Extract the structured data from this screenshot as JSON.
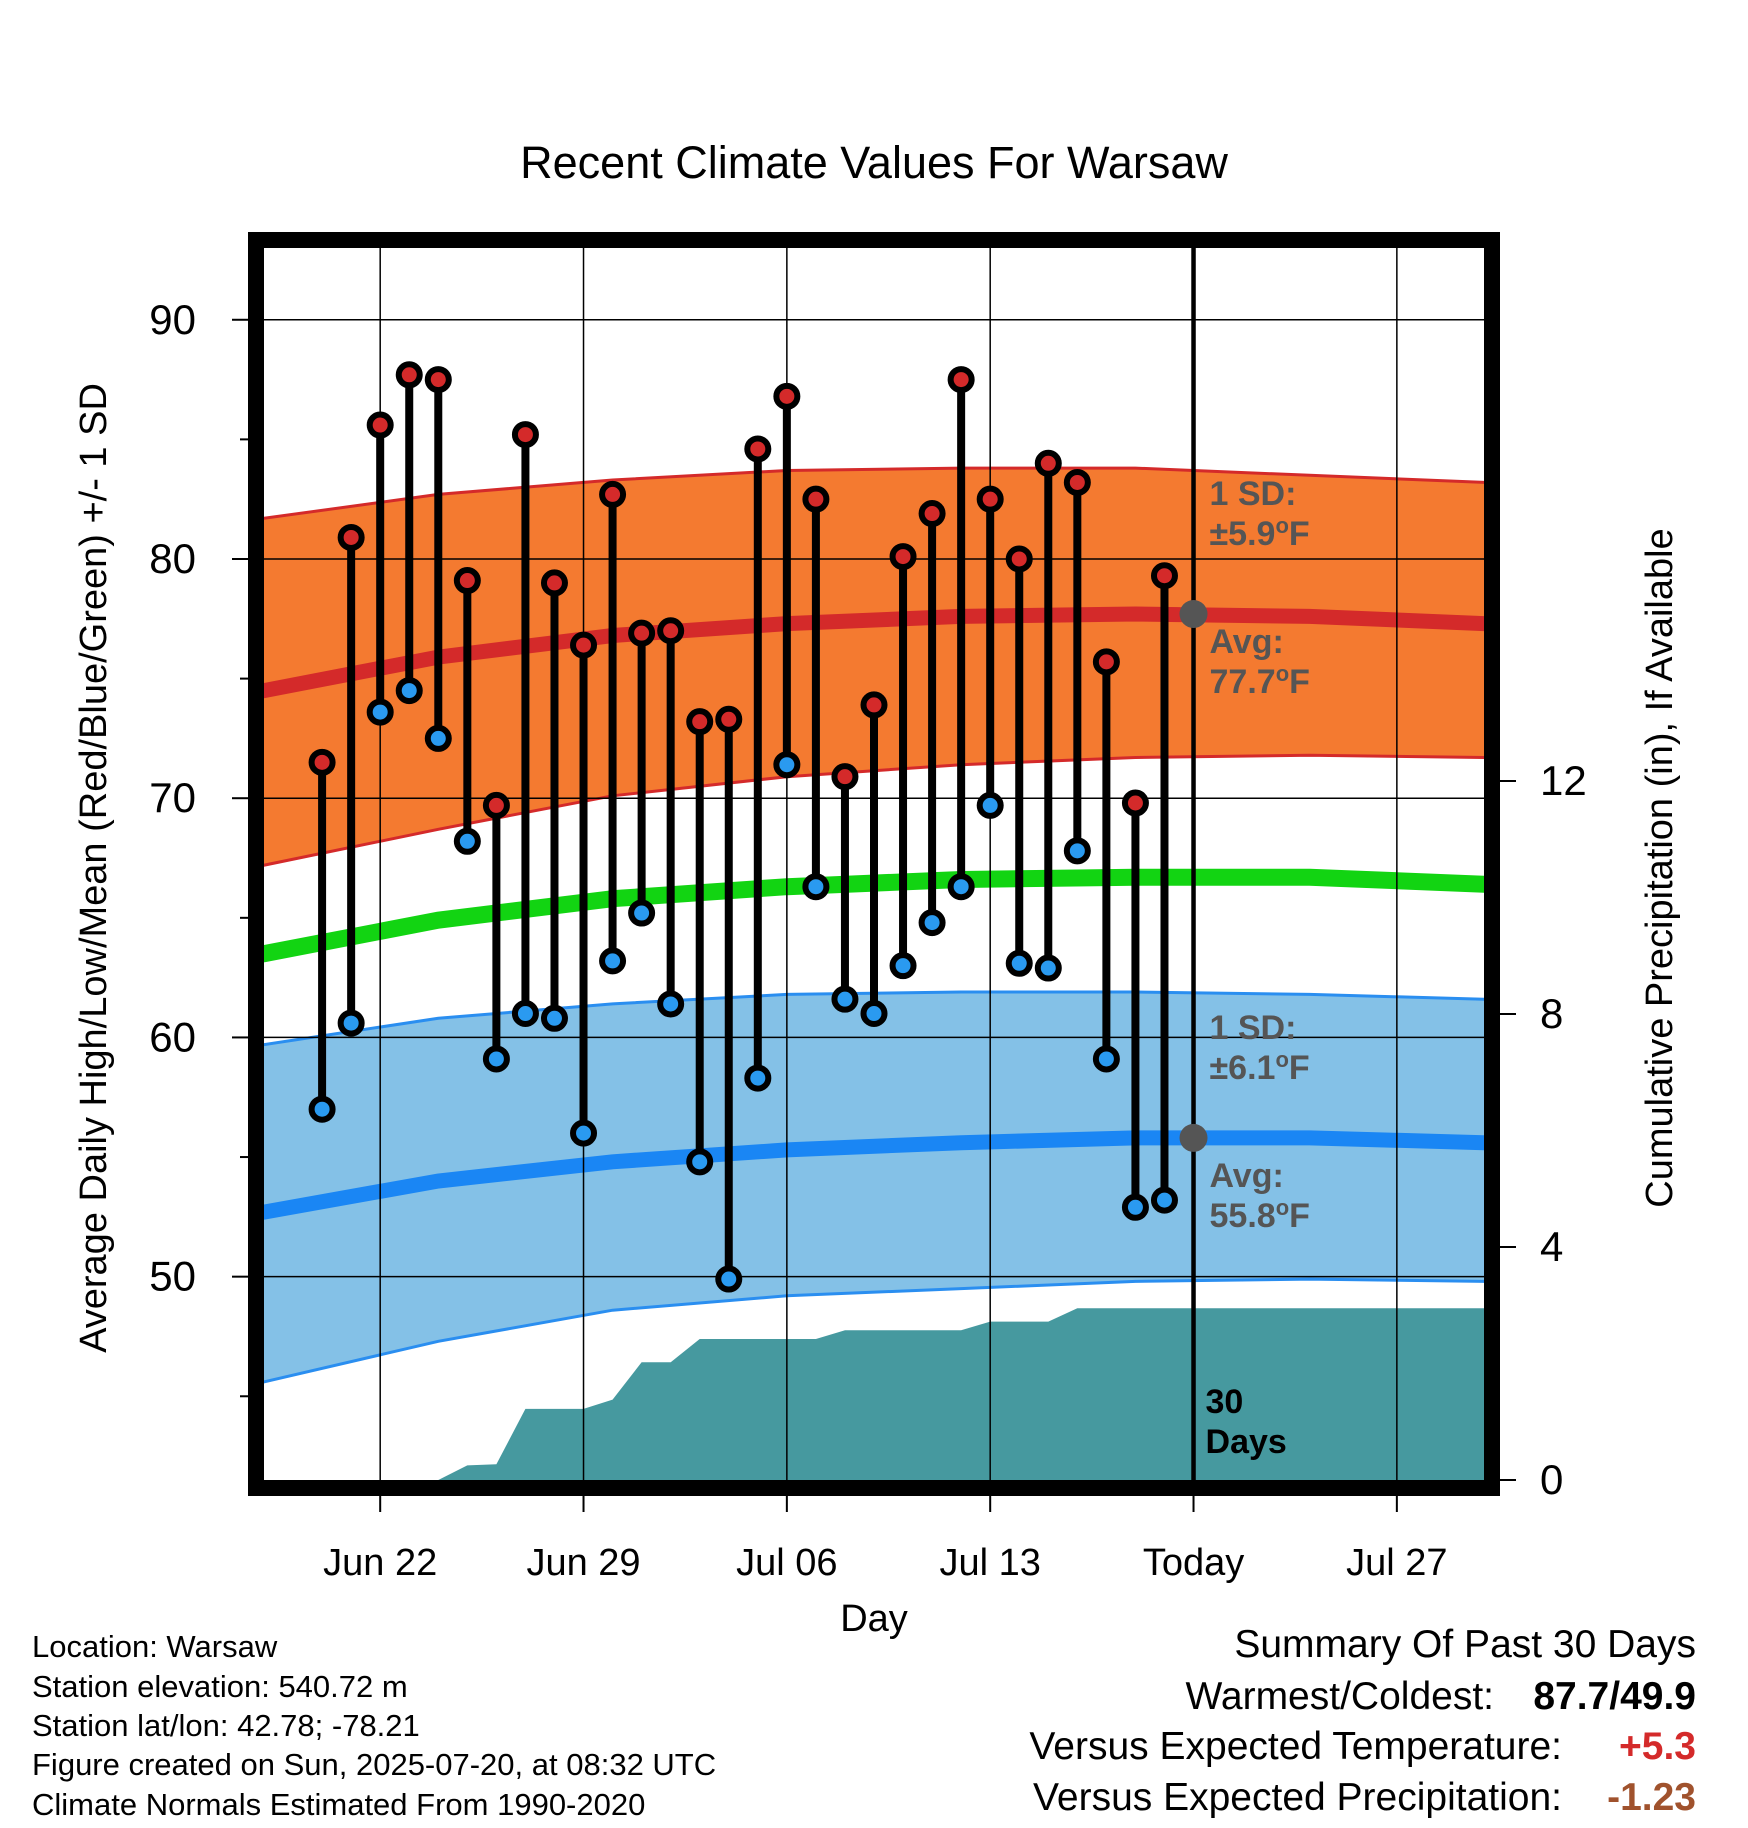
{
  "chart_data": {
    "type": "line",
    "title": "Recent Climate Values For Warsaw",
    "xlabel": "Day",
    "ylabel": "Average Daily High/Low/Mean (Red/Blue/Green) +/- 1 SD",
    "y2label": "Cumulative Precipitation (in), If Available",
    "x_ticks": [
      {
        "label": "Jun 22",
        "date": "2025-06-22"
      },
      {
        "label": "Jun 29",
        "date": "2025-06-29"
      },
      {
        "label": "Jul 06",
        "date": "2025-07-06"
      },
      {
        "label": "Jul 13",
        "date": "2025-07-13"
      },
      {
        "label": "Today",
        "date": "2025-07-20"
      },
      {
        "label": "Jul 27",
        "date": "2025-07-27"
      }
    ],
    "xlim": [
      "2025-06-18",
      "2025-07-30"
    ],
    "ylim": [
      41.5,
      93
    ],
    "y_ticks": [
      50,
      60,
      70,
      80,
      90
    ],
    "y2lim": [
      0,
      21.15
    ],
    "y2_ticks": [
      0,
      4,
      8,
      12
    ],
    "grid": true,
    "today_date": "2025-07-20",
    "daily_high_low": [
      {
        "date": "2025-06-20",
        "high": 71.5,
        "low": 57.0
      },
      {
        "date": "2025-06-21",
        "high": 80.9,
        "low": 60.6
      },
      {
        "date": "2025-06-22",
        "high": 85.6,
        "low": 73.6
      },
      {
        "date": "2025-06-23",
        "high": 87.7,
        "low": 74.5
      },
      {
        "date": "2025-06-24",
        "high": 87.5,
        "low": 72.5
      },
      {
        "date": "2025-06-25",
        "high": 79.1,
        "low": 68.2
      },
      {
        "date": "2025-06-26",
        "high": 69.7,
        "low": 59.1
      },
      {
        "date": "2025-06-27",
        "high": 85.2,
        "low": 61.0
      },
      {
        "date": "2025-06-28",
        "high": 79.0,
        "low": 60.8
      },
      {
        "date": "2025-06-29",
        "high": 76.4,
        "low": 56.0
      },
      {
        "date": "2025-06-30",
        "high": 82.7,
        "low": 63.2
      },
      {
        "date": "2025-07-01",
        "high": 76.9,
        "low": 65.2
      },
      {
        "date": "2025-07-02",
        "high": 77.0,
        "low": 61.4
      },
      {
        "date": "2025-07-03",
        "high": 73.2,
        "low": 54.8
      },
      {
        "date": "2025-07-04",
        "high": 73.3,
        "low": 49.9
      },
      {
        "date": "2025-07-05",
        "high": 84.6,
        "low": 58.3
      },
      {
        "date": "2025-07-06",
        "high": 86.8,
        "low": 71.4
      },
      {
        "date": "2025-07-07",
        "high": 82.5,
        "low": 66.3
      },
      {
        "date": "2025-07-08",
        "high": 70.9,
        "low": 61.6
      },
      {
        "date": "2025-07-09",
        "high": 73.9,
        "low": 61.0
      },
      {
        "date": "2025-07-10",
        "high": 80.1,
        "low": 63.0
      },
      {
        "date": "2025-07-11",
        "high": 81.9,
        "low": 64.8
      },
      {
        "date": "2025-07-12",
        "high": 87.5,
        "low": 66.3
      },
      {
        "date": "2025-07-13",
        "high": 82.5,
        "low": 69.7
      },
      {
        "date": "2025-07-14",
        "high": 80.0,
        "low": 63.1
      },
      {
        "date": "2025-07-15",
        "high": 84.0,
        "low": 62.9
      },
      {
        "date": "2025-07-16",
        "high": 83.2,
        "low": 67.8
      },
      {
        "date": "2025-07-17",
        "high": 75.7,
        "low": 59.1
      },
      {
        "date": "2025-07-18",
        "high": 69.8,
        "low": 52.9
      },
      {
        "date": "2025-07-19",
        "high": 79.3,
        "low": 53.2
      }
    ],
    "normal_high": {
      "x": [
        "2025-06-18",
        "2025-06-24",
        "2025-06-30",
        "2025-07-06",
        "2025-07-12",
        "2025-07-18",
        "2025-07-24",
        "2025-07-30"
      ],
      "avg": [
        74.5,
        75.9,
        76.8,
        77.3,
        77.6,
        77.7,
        77.6,
        77.3
      ],
      "upper": [
        81.7,
        82.7,
        83.3,
        83.7,
        83.8,
        83.8,
        83.5,
        83.2
      ],
      "lower": [
        67.2,
        68.7,
        70.1,
        70.9,
        71.4,
        71.7,
        71.8,
        71.7
      ]
    },
    "normal_mean": {
      "x": [
        "2025-06-18",
        "2025-06-24",
        "2025-06-30",
        "2025-07-06",
        "2025-07-12",
        "2025-07-18",
        "2025-07-24",
        "2025-07-30"
      ],
      "avg": [
        63.5,
        64.9,
        65.8,
        66.3,
        66.6,
        66.7,
        66.7,
        66.4
      ]
    },
    "normal_low": {
      "x": [
        "2025-06-18",
        "2025-06-24",
        "2025-06-30",
        "2025-07-06",
        "2025-07-12",
        "2025-07-18",
        "2025-07-24",
        "2025-07-30"
      ],
      "avg": [
        52.7,
        54.0,
        54.8,
        55.3,
        55.6,
        55.8,
        55.8,
        55.6
      ],
      "upper": [
        59.7,
        60.8,
        61.4,
        61.8,
        61.9,
        61.9,
        61.8,
        61.6
      ],
      "lower": [
        45.6,
        47.3,
        48.6,
        49.2,
        49.5,
        49.8,
        49.9,
        49.8
      ]
    },
    "cumulative_precip": {
      "x": [
        "2025-06-23",
        "2025-06-24",
        "2025-06-25",
        "2025-06-26",
        "2025-06-27",
        "2025-06-28",
        "2025-06-29",
        "2025-06-30",
        "2025-07-01",
        "2025-07-02",
        "2025-07-03",
        "2025-07-04",
        "2025-07-05",
        "2025-07-06",
        "2025-07-07",
        "2025-07-08",
        "2025-07-09",
        "2025-07-10",
        "2025-07-11",
        "2025-07-12",
        "2025-07-13",
        "2025-07-14",
        "2025-07-15",
        "2025-07-16",
        "2025-07-17",
        "2025-07-18",
        "2025-07-19",
        "2025-07-30"
      ],
      "values": [
        0.0,
        0.0,
        0.25,
        0.27,
        1.22,
        1.22,
        1.22,
        1.38,
        2.02,
        2.02,
        2.42,
        2.42,
        2.42,
        2.42,
        2.42,
        2.57,
        2.57,
        2.57,
        2.57,
        2.57,
        2.72,
        2.72,
        2.72,
        2.95,
        2.95,
        2.95,
        2.95,
        2.95
      ]
    },
    "annotations": {
      "high_sd": "1 SD:\n±5.9°F",
      "high_avg": "Avg:\n77.7°F",
      "low_sd": "1 SD:\n±6.1°F",
      "low_avg": "Avg:\n55.8°F",
      "days": "30\nDays"
    },
    "colors": {
      "high_band": "#f47a30",
      "high_line": "#d42a2a",
      "mean_line": "#12d412",
      "low_band": "#84c1e7",
      "low_line": "#2a8ef0",
      "low_line_bold": "#1a86f4",
      "precip": "#46999f",
      "high_marker": "#d42a2a",
      "low_marker": "#2a9af0",
      "annotation_text": "#555555",
      "today_marker": "#555555"
    }
  },
  "footer": {
    "location": "Location: Warsaw",
    "elevation": "Station elevation: 540.72 m",
    "latlon": "Station lat/lon: 42.78; -78.21",
    "created": "Figure created on Sun, 2025-07-20, at 08:32 UTC",
    "normals": "Climate Normals Estimated From 1990-2020"
  },
  "summary": {
    "title": "Summary Of Past 30 Days",
    "warmest_label": "Warmest/Coldest:",
    "warmest_value": "87.7/49.9",
    "temp_label": "Versus Expected Temperature:",
    "temp_value": "+5.3",
    "temp_color": "#d42a2a",
    "precip_label": "Versus Expected Precipitation:",
    "precip_value": "-1.23",
    "precip_color": "#a0522d"
  }
}
